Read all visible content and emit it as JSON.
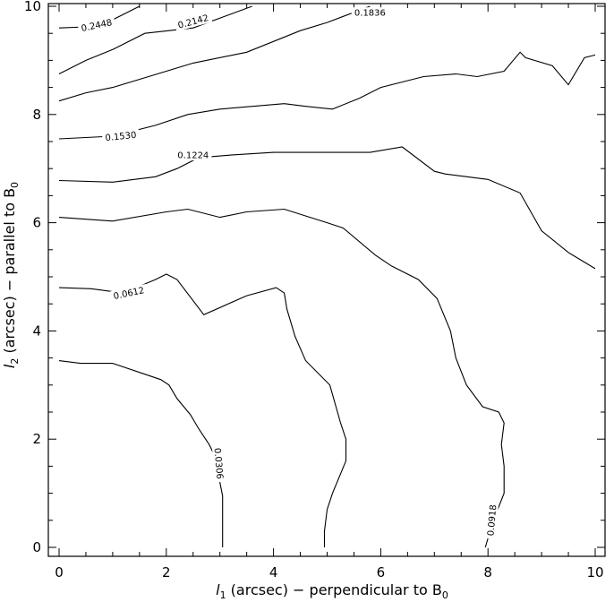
{
  "chart_data": {
    "type": "contour",
    "xlabel": {
      "symbol": "l",
      "sub": "1",
      "text": " (arcsec) − perpendicular to B",
      "sub2": "0"
    },
    "ylabel": {
      "symbol": "l",
      "sub": "2",
      "text": " (arcsec) − parallel to B",
      "sub2": "0"
    },
    "xlim": [
      0,
      10
    ],
    "ylim": [
      0,
      10
    ],
    "xticks": [
      0,
      2,
      4,
      6,
      8,
      10
    ],
    "yticks": [
      0,
      2,
      4,
      6,
      8,
      10
    ],
    "grid": false,
    "contours": [
      {
        "level": "0.0306",
        "points": [
          [
            3.05,
            0
          ],
          [
            3.05,
            0.95
          ],
          [
            3.0,
            1.2
          ],
          [
            2.95,
            1.5
          ],
          [
            2.9,
            1.7
          ],
          [
            2.8,
            1.9
          ],
          [
            2.7,
            2.05
          ],
          [
            2.6,
            2.2
          ],
          [
            2.45,
            2.45
          ],
          [
            2.2,
            2.75
          ],
          [
            2.05,
            3.0
          ],
          [
            1.9,
            3.1
          ],
          [
            1.6,
            3.2
          ],
          [
            1.0,
            3.4
          ],
          [
            0.4,
            3.4
          ],
          [
            0.0,
            3.45
          ]
        ],
        "label": {
          "text": "0.0306",
          "x": 2.98,
          "y": 1.55,
          "angle": 85
        }
      },
      {
        "level": "0.0612",
        "points": [
          [
            4.95,
            0
          ],
          [
            4.95,
            0.3
          ],
          [
            5.0,
            0.7
          ],
          [
            5.1,
            1.0
          ],
          [
            5.35,
            1.6
          ],
          [
            5.35,
            2.0
          ],
          [
            5.25,
            2.3
          ],
          [
            5.05,
            3.0
          ],
          [
            4.6,
            3.45
          ],
          [
            4.4,
            3.9
          ],
          [
            4.25,
            4.4
          ],
          [
            4.2,
            4.7
          ],
          [
            4.05,
            4.8
          ],
          [
            3.5,
            4.65
          ],
          [
            2.7,
            4.3
          ],
          [
            2.2,
            4.95
          ],
          [
            2.0,
            5.05
          ],
          [
            1.8,
            4.95
          ],
          [
            1.2,
            4.7
          ],
          [
            0.6,
            4.78
          ],
          [
            0.0,
            4.8
          ]
        ],
        "label": {
          "text": "0.0612",
          "x": 1.3,
          "y": 4.7,
          "angle": -12
        }
      },
      {
        "level": "0.0918",
        "points": [
          [
            7.95,
            0
          ],
          [
            8.1,
            0.5
          ],
          [
            8.3,
            1.0
          ],
          [
            8.3,
            1.5
          ],
          [
            8.25,
            1.9
          ],
          [
            8.3,
            2.3
          ],
          [
            8.2,
            2.5
          ],
          [
            7.9,
            2.6
          ],
          [
            7.6,
            3.0
          ],
          [
            7.4,
            3.5
          ],
          [
            7.3,
            4.0
          ],
          [
            7.05,
            4.6
          ],
          [
            6.7,
            4.95
          ],
          [
            6.2,
            5.2
          ],
          [
            5.9,
            5.4
          ],
          [
            5.3,
            5.9
          ],
          [
            5.0,
            6.0
          ],
          [
            4.2,
            6.25
          ],
          [
            3.5,
            6.2
          ],
          [
            3.0,
            6.1
          ],
          [
            2.4,
            6.25
          ],
          [
            2.0,
            6.2
          ],
          [
            1.0,
            6.03
          ],
          [
            0.0,
            6.1
          ]
        ],
        "label": {
          "text": "0.0918",
          "x": 8.07,
          "y": 0.5,
          "angle": -85
        }
      },
      {
        "level": "0.1224",
        "points": [
          [
            10.0,
            5.15
          ],
          [
            9.5,
            5.45
          ],
          [
            9.0,
            5.85
          ],
          [
            8.8,
            6.2
          ],
          [
            8.6,
            6.55
          ],
          [
            8.0,
            6.8
          ],
          [
            7.2,
            6.9
          ],
          [
            7.0,
            6.95
          ],
          [
            6.4,
            7.4
          ],
          [
            5.8,
            7.3
          ],
          [
            5.0,
            7.3
          ],
          [
            4.0,
            7.3
          ],
          [
            3.2,
            7.25
          ],
          [
            2.6,
            7.2
          ],
          [
            2.2,
            7.0
          ],
          [
            1.8,
            6.85
          ],
          [
            1.0,
            6.75
          ],
          [
            0.0,
            6.78
          ]
        ],
        "label": {
          "text": "0.1224",
          "x": 2.5,
          "y": 7.25,
          "angle": 0
        }
      },
      {
        "level": "0.1530",
        "points": [
          [
            10.0,
            9.1
          ],
          [
            9.8,
            9.05
          ],
          [
            9.5,
            8.55
          ],
          [
            9.2,
            8.9
          ],
          [
            8.7,
            9.05
          ],
          [
            8.6,
            9.15
          ],
          [
            8.3,
            8.8
          ],
          [
            7.8,
            8.7
          ],
          [
            7.4,
            8.75
          ],
          [
            6.8,
            8.7
          ],
          [
            6.0,
            8.5
          ],
          [
            5.6,
            8.3
          ],
          [
            5.1,
            8.1
          ],
          [
            4.6,
            8.15
          ],
          [
            4.2,
            8.2
          ],
          [
            3.0,
            8.1
          ],
          [
            2.4,
            8.0
          ],
          [
            1.8,
            7.8
          ],
          [
            1.0,
            7.6
          ],
          [
            0.0,
            7.55
          ]
        ],
        "label": {
          "text": "0.1530",
          "x": 1.15,
          "y": 7.6,
          "angle": -6
        }
      },
      {
        "level": "0.1836",
        "points": [
          [
            5.8,
            10.0
          ],
          [
            5.0,
            9.7
          ],
          [
            4.5,
            9.55
          ],
          [
            3.5,
            9.15
          ],
          [
            2.5,
            8.95
          ],
          [
            2.0,
            8.8
          ],
          [
            1.0,
            8.5
          ],
          [
            0.5,
            8.4
          ],
          [
            0.0,
            8.25
          ]
        ],
        "label": {
          "text": "0.1836",
          "x": 5.8,
          "y": 9.88,
          "angle": 0
        }
      },
      {
        "level": "0.2142",
        "points": [
          [
            3.6,
            10.0
          ],
          [
            2.5,
            9.6
          ],
          [
            1.6,
            9.5
          ],
          [
            1.0,
            9.2
          ],
          [
            0.5,
            9.0
          ],
          [
            0.0,
            8.75
          ]
        ],
        "label": {
          "text": "0.2142",
          "x": 2.5,
          "y": 9.72,
          "angle": -15
        }
      },
      {
        "level": "0.2448",
        "points": [
          [
            1.5,
            10.0
          ],
          [
            1.0,
            9.75
          ],
          [
            0.5,
            9.62
          ],
          [
            0.0,
            9.6
          ]
        ],
        "label": {
          "text": "0.2448",
          "x": 0.7,
          "y": 9.65,
          "angle": -12
        }
      }
    ]
  }
}
